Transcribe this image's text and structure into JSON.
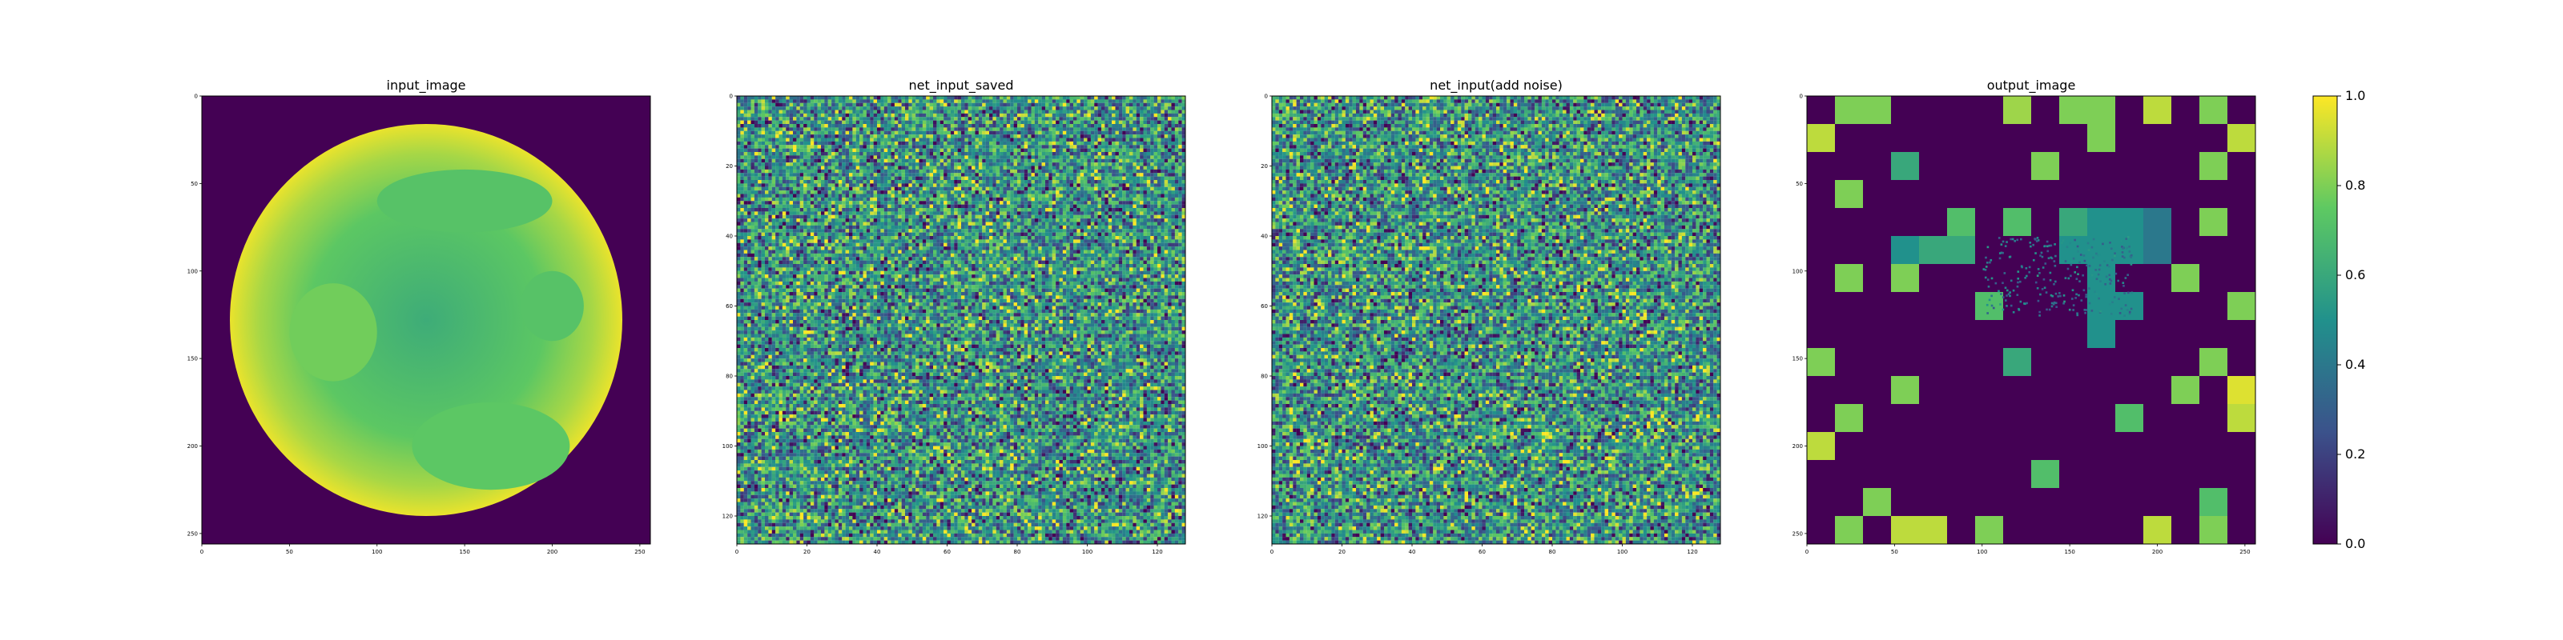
{
  "colormap": "viridis",
  "viridis_stops": [
    "#440154",
    "#3b528b",
    "#21918c",
    "#5ec962",
    "#fde725"
  ],
  "chart_data": [
    {
      "type": "heatmap",
      "title": "input_image",
      "x_ticks": [
        "0",
        "50",
        "100",
        "150",
        "200",
        "250"
      ],
      "y_ticks": [
        "0",
        "50",
        "100",
        "150",
        "200",
        "250"
      ],
      "xlim": [
        0,
        256
      ],
      "ylim": [
        0,
        256
      ],
      "content": "disc",
      "disc": {
        "cx": 128,
        "cy": 128,
        "r": 112,
        "center_value": 0.62,
        "edge_value": 0.97,
        "background_value": 0.0
      },
      "blobs": [
        {
          "cx": 150,
          "cy": 60,
          "rx": 50,
          "ry": 18,
          "value": 0.72
        },
        {
          "cx": 75,
          "cy": 135,
          "rx": 25,
          "ry": 28,
          "value": 0.78
        },
        {
          "cx": 200,
          "cy": 120,
          "rx": 18,
          "ry": 20,
          "value": 0.72
        },
        {
          "cx": 165,
          "cy": 200,
          "rx": 45,
          "ry": 25,
          "value": 0.74
        }
      ]
    },
    {
      "type": "heatmap",
      "title": "net_input_saved",
      "x_ticks": [
        "0",
        "20",
        "40",
        "60",
        "80",
        "100",
        "120"
      ],
      "y_ticks": [
        "0",
        "20",
        "40",
        "60",
        "80",
        "100",
        "120"
      ],
      "xlim": [
        0,
        128
      ],
      "ylim": [
        0,
        128
      ],
      "content": "noise",
      "grid": 128,
      "seed": 11
    },
    {
      "type": "heatmap",
      "title": "net_input(add noise)",
      "x_ticks": [
        "0",
        "20",
        "40",
        "60",
        "80",
        "100",
        "120"
      ],
      "y_ticks": [
        "0",
        "20",
        "40",
        "60",
        "80",
        "100",
        "120"
      ],
      "xlim": [
        0,
        128
      ],
      "ylim": [
        0,
        128
      ],
      "content": "noise",
      "grid": 128,
      "seed": 29
    },
    {
      "type": "heatmap",
      "title": "output_image",
      "x_ticks": [
        "0",
        "50",
        "100",
        "150",
        "200",
        "250"
      ],
      "y_ticks": [
        "0",
        "50",
        "100",
        "150",
        "200",
        "250"
      ],
      "xlim": [
        0,
        256
      ],
      "ylim": [
        0,
        256
      ],
      "content": "blocks",
      "block_grid": 16,
      "blocks": [
        [
          0.0,
          0.8,
          0.8,
          0.0,
          0.0,
          0.0,
          0.0,
          0.85,
          0.0,
          0.8,
          0.8,
          0.0,
          0.9,
          0.0,
          0.8,
          0.0
        ],
        [
          0.9,
          0.0,
          0.0,
          0.0,
          0.0,
          0.0,
          0.0,
          0.0,
          0.0,
          0.0,
          0.8,
          0.0,
          0.0,
          0.0,
          0.0,
          0.9
        ],
        [
          0.0,
          0.0,
          0.0,
          0.6,
          0.0,
          0.0,
          0.0,
          0.0,
          0.8,
          0.0,
          0.0,
          0.0,
          0.0,
          0.0,
          0.8,
          0.0
        ],
        [
          0.0,
          0.8,
          0.0,
          0.0,
          0.0,
          0.0,
          0.0,
          0.0,
          0.0,
          0.0,
          0.0,
          0.0,
          0.0,
          0.0,
          0.0,
          0.0
        ],
        [
          0.0,
          0.0,
          0.0,
          0.0,
          0.0,
          0.7,
          0.0,
          0.7,
          0.0,
          0.6,
          0.5,
          0.5,
          0.4,
          0.0,
          0.8,
          0.0
        ],
        [
          0.0,
          0.0,
          0.0,
          0.5,
          0.6,
          0.6,
          0.0,
          0.0,
          0.0,
          0.5,
          0.5,
          0.5,
          0.4,
          0.0,
          0.0,
          0.0
        ],
        [
          0.0,
          0.8,
          0.0,
          0.8,
          0.0,
          0.0,
          0.0,
          0.0,
          0.0,
          0.0,
          0.5,
          0.0,
          0.0,
          0.8,
          0.0,
          0.0
        ],
        [
          0.0,
          0.0,
          0.0,
          0.0,
          0.0,
          0.0,
          0.7,
          0.0,
          0.0,
          0.0,
          0.5,
          0.5,
          0.0,
          0.0,
          0.0,
          0.8
        ],
        [
          0.0,
          0.0,
          0.0,
          0.0,
          0.0,
          0.0,
          0.0,
          0.0,
          0.0,
          0.0,
          0.5,
          0.0,
          0.0,
          0.0,
          0.0,
          0.0
        ],
        [
          0.8,
          0.0,
          0.0,
          0.0,
          0.0,
          0.0,
          0.0,
          0.6,
          0.0,
          0.0,
          0.0,
          0.0,
          0.0,
          0.0,
          0.8,
          0.0
        ],
        [
          0.0,
          0.0,
          0.0,
          0.8,
          0.0,
          0.0,
          0.0,
          0.0,
          0.0,
          0.0,
          0.0,
          0.0,
          0.0,
          0.8,
          0.0,
          0.95
        ],
        [
          0.0,
          0.8,
          0.0,
          0.0,
          0.0,
          0.0,
          0.0,
          0.0,
          0.0,
          0.0,
          0.0,
          0.7,
          0.0,
          0.0,
          0.0,
          0.9
        ],
        [
          0.9,
          0.0,
          0.0,
          0.0,
          0.0,
          0.0,
          0.0,
          0.0,
          0.0,
          0.0,
          0.0,
          0.0,
          0.0,
          0.0,
          0.0,
          0.0
        ],
        [
          0.0,
          0.0,
          0.0,
          0.0,
          0.0,
          0.0,
          0.0,
          0.0,
          0.7,
          0.0,
          0.0,
          0.0,
          0.0,
          0.0,
          0.0,
          0.0
        ],
        [
          0.0,
          0.0,
          0.8,
          0.0,
          0.0,
          0.0,
          0.0,
          0.0,
          0.0,
          0.0,
          0.0,
          0.0,
          0.0,
          0.0,
          0.7,
          0.0
        ],
        [
          0.0,
          0.8,
          0.0,
          0.9,
          0.9,
          0.0,
          0.8,
          0.0,
          0.0,
          0.0,
          0.0,
          0.0,
          0.9,
          0.0,
          0.8,
          0.0
        ]
      ],
      "colorbar": {
        "vmin": 0.0,
        "vmax": 1.0,
        "ticks": [
          "0.0",
          "0.2",
          "0.4",
          "0.6",
          "0.8",
          "1.0"
        ]
      }
    }
  ]
}
